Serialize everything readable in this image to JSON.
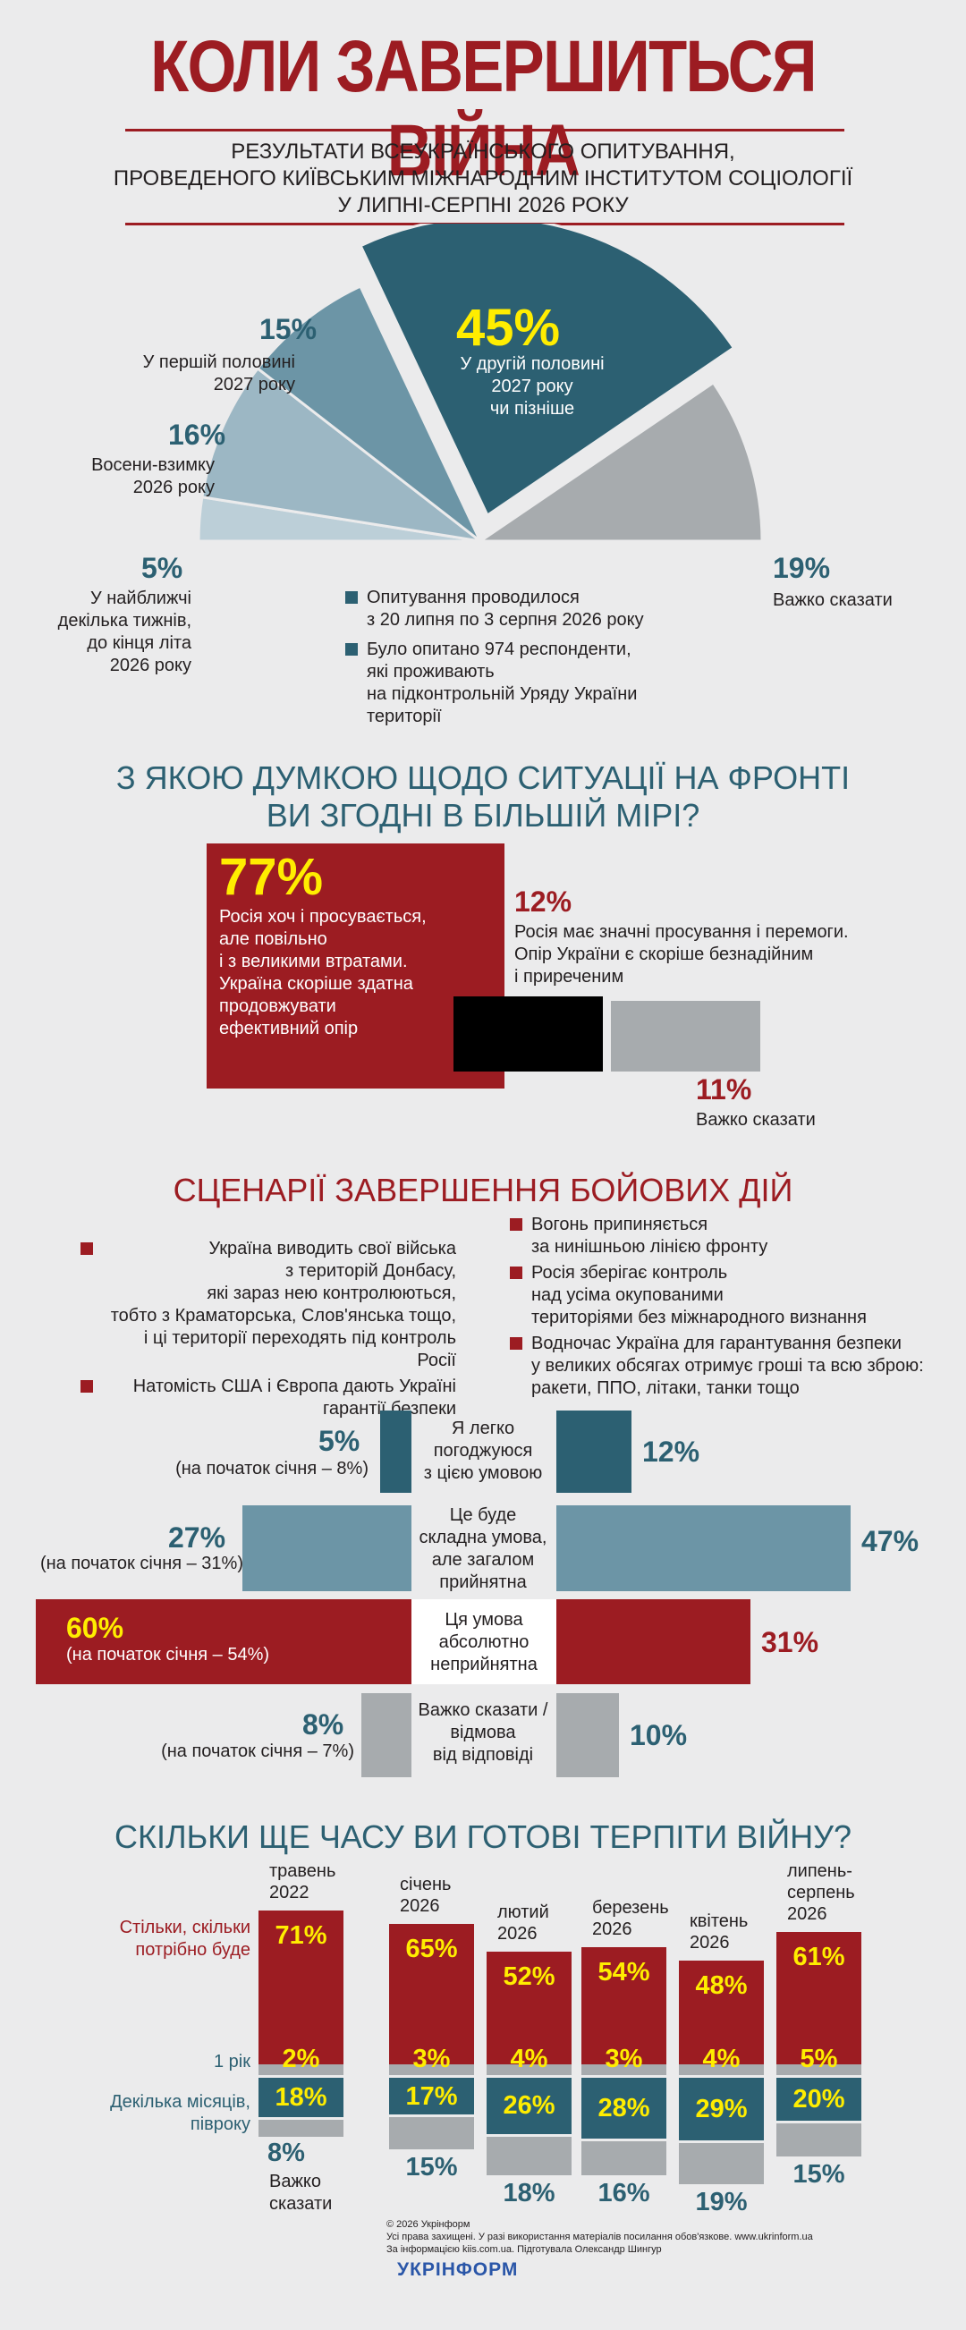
{
  "header": {
    "title": "КОЛИ ЗАВЕРШИТЬСЯ ВІЙНА",
    "subtitle_lines": [
      "РЕЗУЛЬТАТИ ВСЕУКРАЇНСЬКОГО ОПИТУВАННЯ,",
      "ПРОВЕДЕНОГО КИЇВСЬКИМ МІЖНАРОДНИМ ІНСТИТУТОМ СОЦІОЛОГІЇ",
      "У ЛИПНІ-СЕРПНІ 2026 РОКУ"
    ]
  },
  "colors": {
    "red": "#9c1c22",
    "dark_teal": "#2c6072",
    "teal": "#6c95a6",
    "light_teal": "#9cb7c4",
    "lighter_teal": "#bccfd8",
    "grey": "#a7abae",
    "yellow": "#ffed00",
    "black": "#000000"
  },
  "chart_data": [
    {
      "type": "pie",
      "slices": [
        {
          "label_lines": [
            "У найближчі",
            "декілька тижнів,",
            "до кінця літа",
            "2026 року"
          ],
          "value": 5,
          "value_text": "5%"
        },
        {
          "label_lines": [
            "Восени-взимку",
            "2026 року"
          ],
          "value": 16,
          "value_text": "16%"
        },
        {
          "label_lines": [
            "У першій половині",
            "2027 року"
          ],
          "value": 15,
          "value_text": "15%"
        },
        {
          "label_lines": [
            "У другій половині",
            "2027 року",
            "чи пізніше"
          ],
          "value": 45,
          "value_text": "45%"
        },
        {
          "label_lines": [
            "Важко сказати"
          ],
          "value": 19,
          "value_text": "19%"
        }
      ],
      "notes": [
        {
          "lines": [
            "Опитування проводилося",
            "з 20 липня по 3 серпня 2026 року"
          ]
        },
        {
          "lines": [
            "Було опитано 974 респонденти,",
            "які проживають",
            "на підконтрольній Уряду України",
            "території"
          ]
        }
      ]
    },
    {
      "type": "bar",
      "title_lines": [
        "З ЯКОЮ ДУМКОЮ ЩОДО СИТУАЦІЇ НА ФРОНТІ",
        "ВИ ЗГОДНІ В БІЛЬШІЙ МІРІ?"
      ],
      "items": [
        {
          "value": 77,
          "value_text": "77%",
          "label_lines": [
            "Росія хоч і просувається,",
            "але повільно",
            "і з великими втратами.",
            "Україна скоріше здатна",
            "продовжувати",
            "ефективний опір"
          ]
        },
        {
          "value": 12,
          "value_text": "12%",
          "label_lines": [
            "Росія має значні просування і перемоги.",
            "Опір України є скоріше безнадійним",
            "і приреченим"
          ]
        },
        {
          "value": 11,
          "value_text": "11%",
          "label_lines": [
            "Важко сказати"
          ]
        }
      ]
    },
    {
      "type": "bar",
      "title": "СЦЕНАРІЇ ЗАВЕРШЕННЯ БОЙОВИХ ДІЙ",
      "conditions_left": [
        {
          "lines": [
            "Україна виводить свої війська",
            "з територій Донбасу,",
            "які зараз нею контролюються,",
            "тобто з Краматорська, Слов'янська тощо,",
            "і ці території переходять під контроль Росії"
          ]
        },
        {
          "lines": [
            "Натомість США і Європа дають Україні",
            "гарантії безпеки"
          ]
        }
      ],
      "conditions_right": [
        {
          "lines": [
            "Вогонь припиняється",
            "за нинішньою лінією фронту"
          ]
        },
        {
          "lines": [
            "Росія зберігає контроль",
            "над усіма окупованими",
            "територіями без міжнародного визнання"
          ]
        },
        {
          "lines": [
            "Водночас Україна для гарантування безпеки",
            "у великих обсягах отримує гроші та всю зброю:",
            "ракети, ППО, літаки, танки тощо"
          ]
        }
      ],
      "rows": [
        {
          "label_lines": [
            "Я легко",
            "погоджуюся",
            "з цією умовою"
          ],
          "left_value": 5,
          "left_text": "5%",
          "left_note": "(на початок січня – 8%)",
          "right_value": 12,
          "right_text": "12%"
        },
        {
          "label_lines": [
            "Це буде",
            "складна умова,",
            "але загалом",
            "прийнятна"
          ],
          "left_value": 27,
          "left_text": "27%",
          "left_note": "(на початок січня – 31%)",
          "right_value": 47,
          "right_text": "47%"
        },
        {
          "label_lines": [
            "Ця умова",
            "абсолютно",
            "неприйнятна"
          ],
          "left_value": 60,
          "left_text": "60%",
          "left_note": "(на початок січня – 54%)",
          "right_value": 31,
          "right_text": "31%"
        },
        {
          "label_lines": [
            "Важко сказати /",
            "відмова",
            "від відповіді"
          ],
          "left_value": 8,
          "left_text": "8%",
          "left_note": "(на початок січня – 7%)",
          "right_value": 10,
          "right_text": "10%"
        }
      ]
    },
    {
      "type": "bar",
      "stacked": true,
      "title": "СКІЛЬКИ ЩЕ ЧАСУ ВИ ГОТОВІ ТЕРПІТИ ВІЙНУ?",
      "row_labels": {
        "as_needed": [
          "Стільки, скільки",
          "потрібно буде"
        ],
        "one_year": [
          "1 рік"
        ],
        "months": [
          "Декілька місяців,",
          "півроку"
        ]
      },
      "columns": [
        {
          "period": [
            "травень",
            "2022"
          ],
          "as_needed": 71,
          "one_year": 2,
          "months": 18,
          "hard": 8,
          "hard_label": [
            "Важко",
            "сказати"
          ]
        },
        {
          "period": [
            "січень",
            "2026"
          ],
          "as_needed": 65,
          "one_year": 3,
          "months": 17,
          "hard": 15
        },
        {
          "period": [
            "лютий",
            "2026"
          ],
          "as_needed": 52,
          "one_year": 4,
          "months": 26,
          "hard": 18
        },
        {
          "period": [
            "березень",
            "2026"
          ],
          "as_needed": 54,
          "one_year": 3,
          "months": 28,
          "hard": 16
        },
        {
          "period": [
            "квітень",
            "2026"
          ],
          "as_needed": 48,
          "one_year": 4,
          "months": 29,
          "hard": 19
        },
        {
          "period": [
            "липень-",
            "серпень",
            "2026"
          ],
          "as_needed": 61,
          "one_year": 5,
          "months": 20,
          "hard": 15
        }
      ]
    }
  ],
  "footer": {
    "copyright": "© 2026 Укрінформ",
    "rights": "Усі права захищені. У разі використання матеріалів посилання обов'язкове. www.ukrinform.ua",
    "info": "За інформацією kiis.com.ua. Підготувала Олександр Шингур",
    "logo": "УКРІНФОРМ"
  }
}
